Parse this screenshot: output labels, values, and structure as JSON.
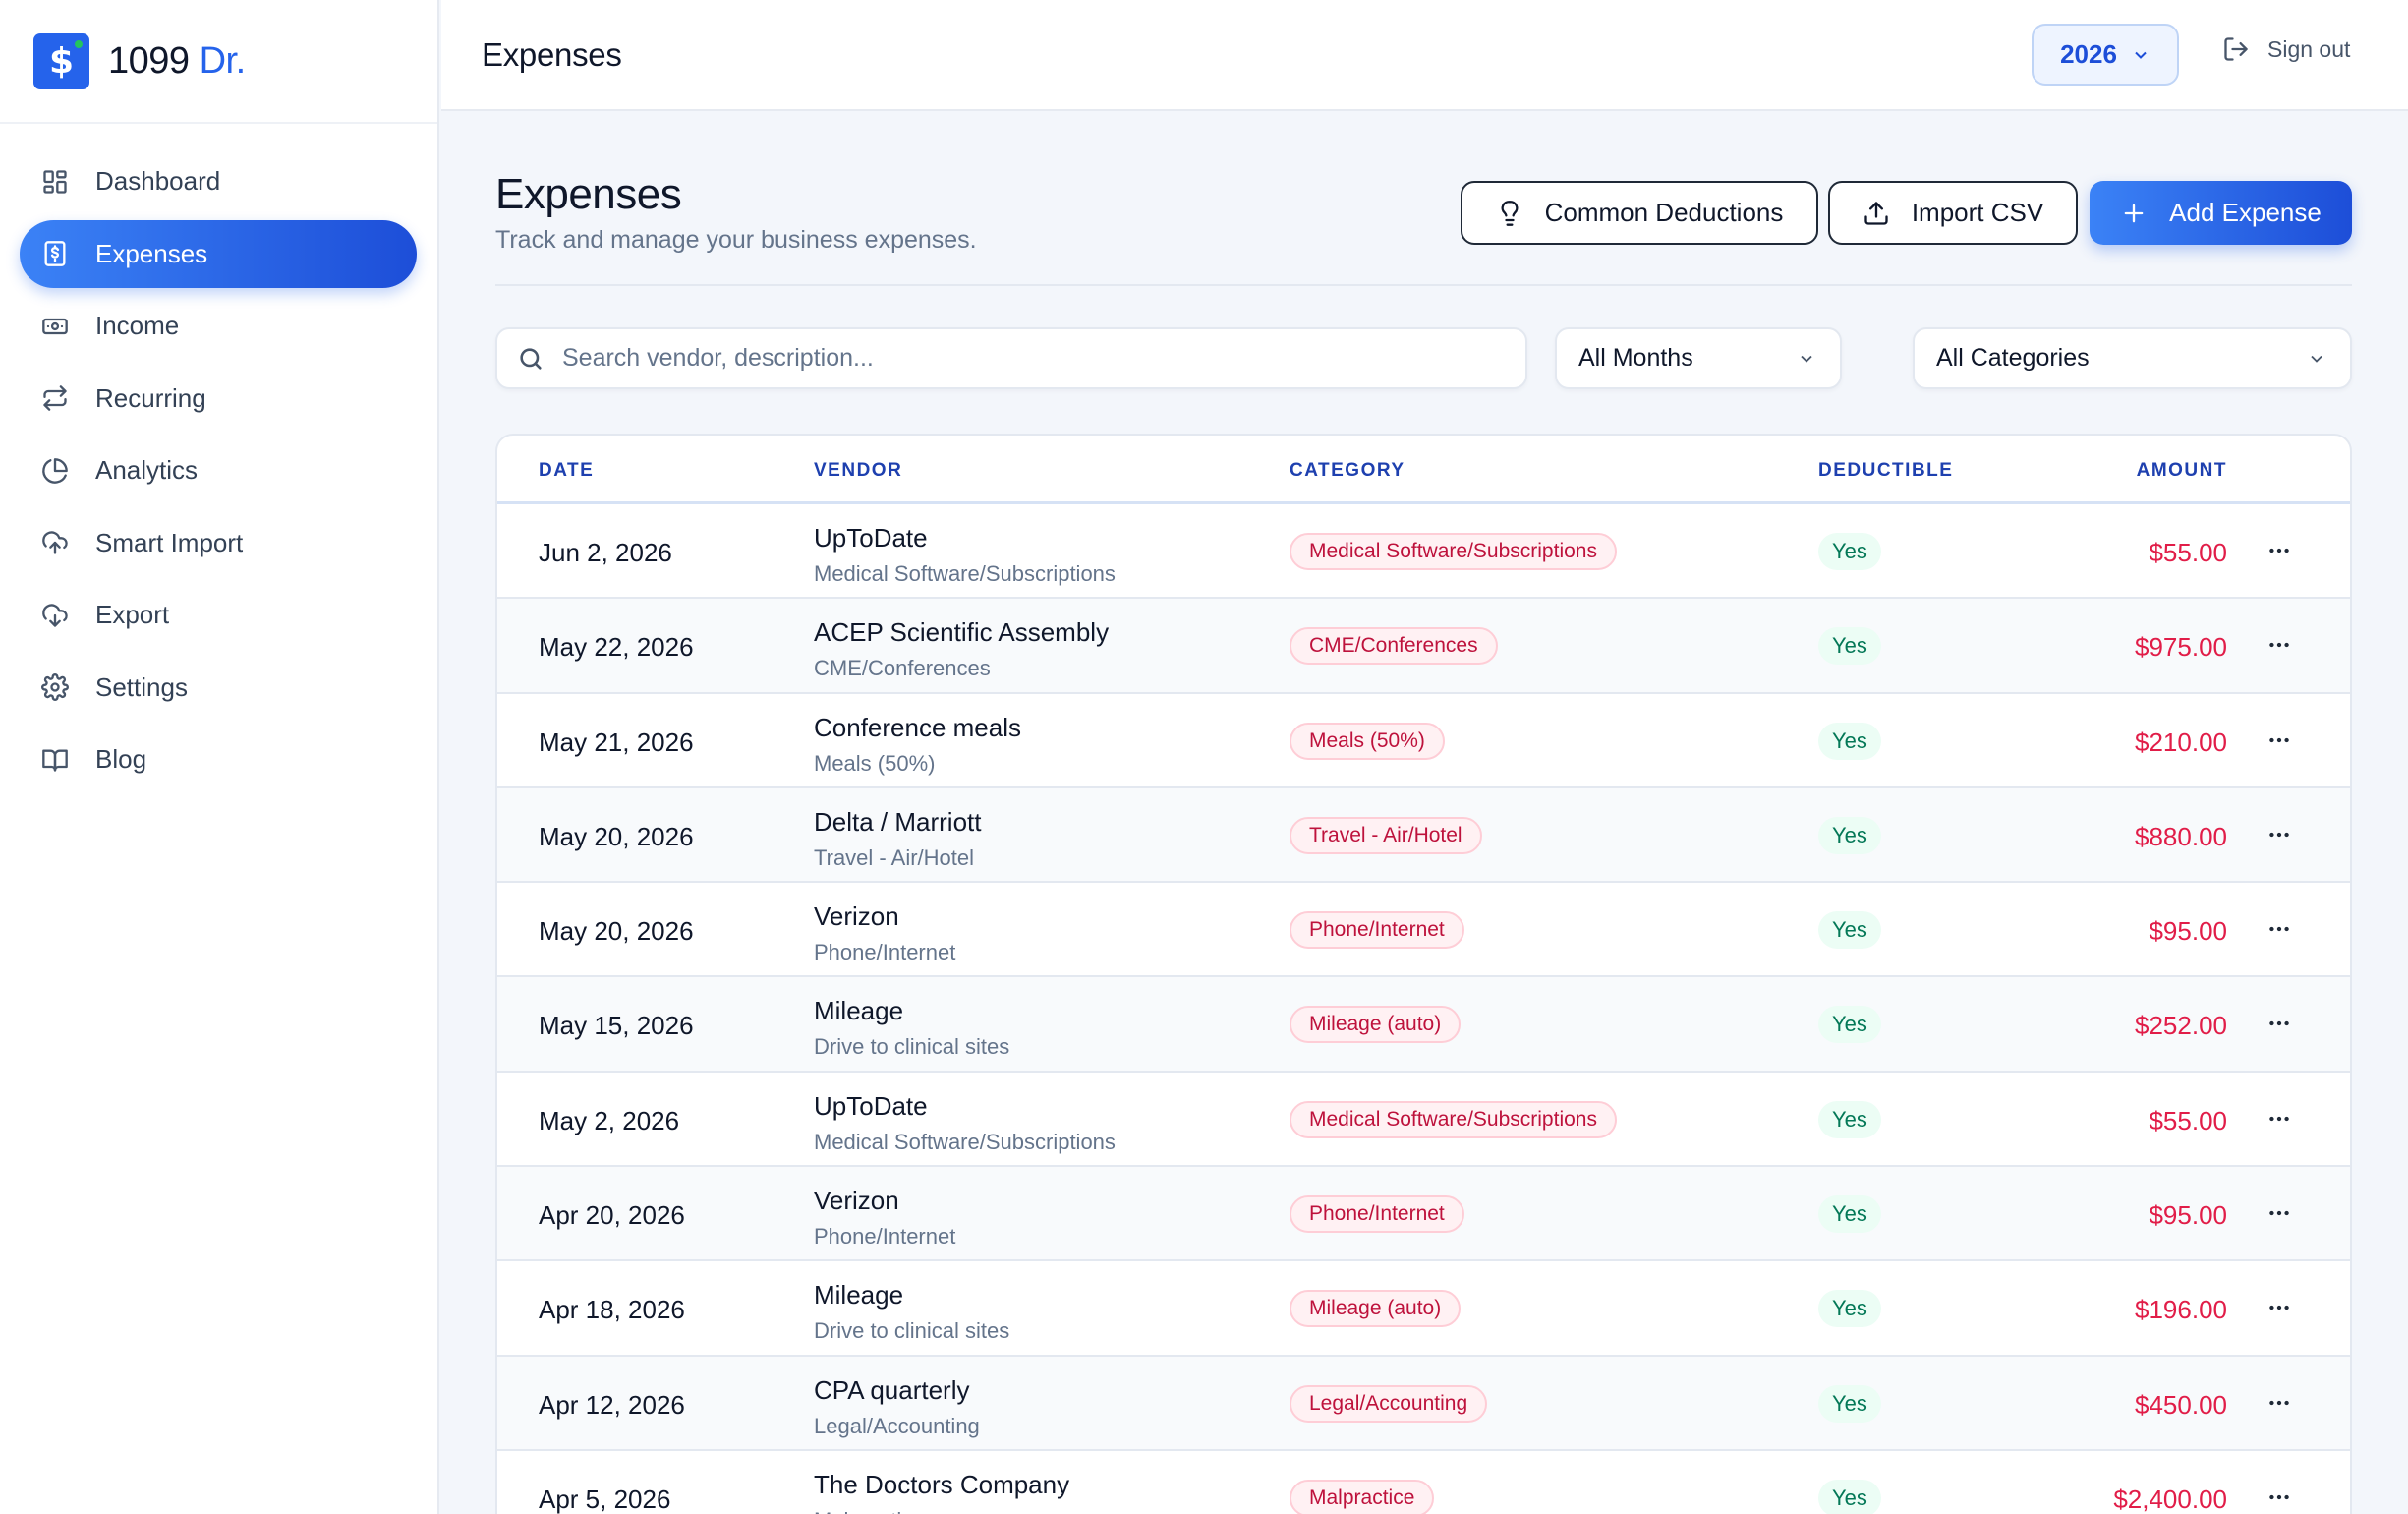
{
  "brand": {
    "name_prefix": "1099",
    "name_accent": "Dr.",
    "logo_symbol": "$"
  },
  "sidebar": {
    "items": [
      {
        "label": "Dashboard",
        "icon": "grid-icon",
        "active": false
      },
      {
        "label": "Expenses",
        "icon": "receipt-icon",
        "active": true
      },
      {
        "label": "Income",
        "icon": "banknote-icon",
        "active": false
      },
      {
        "label": "Recurring",
        "icon": "repeat-icon",
        "active": false
      },
      {
        "label": "Analytics",
        "icon": "pie-chart-icon",
        "active": false
      },
      {
        "label": "Smart Import",
        "icon": "cloud-upload-icon",
        "active": false
      },
      {
        "label": "Export",
        "icon": "cloud-download-icon",
        "active": false
      },
      {
        "label": "Settings",
        "icon": "gear-icon",
        "active": false
      },
      {
        "label": "Blog",
        "icon": "book-icon",
        "active": false
      }
    ]
  },
  "topbar": {
    "title": "Expenses",
    "year": "2026",
    "signout": "Sign out"
  },
  "page": {
    "title": "Expenses",
    "subtitle": "Track and manage your business expenses.",
    "buttons": {
      "deductions": "Common Deductions",
      "import": "Import CSV",
      "add": "Add Expense"
    }
  },
  "filters": {
    "search_placeholder": "Search vendor, description...",
    "search_value": "",
    "months": "All Months",
    "categories": "All Categories"
  },
  "table": {
    "columns": {
      "date": "DATE",
      "vendor": "VENDOR",
      "category": "CATEGORY",
      "deductible": "DEDUCTIBLE",
      "amount": "AMOUNT"
    },
    "rows": [
      {
        "date": "Jun 2, 2026",
        "vendor": "UpToDate",
        "desc": "Medical Software/Subscriptions",
        "category": "Medical Software/Subscriptions",
        "deductible": "Yes",
        "amount": "$55.00"
      },
      {
        "date": "May 22, 2026",
        "vendor": "ACEP Scientific Assembly",
        "desc": "CME/Conferences",
        "category": "CME/Conferences",
        "deductible": "Yes",
        "amount": "$975.00"
      },
      {
        "date": "May 21, 2026",
        "vendor": "Conference meals",
        "desc": "Meals (50%)",
        "category": "Meals (50%)",
        "deductible": "Yes",
        "amount": "$210.00"
      },
      {
        "date": "May 20, 2026",
        "vendor": "Delta / Marriott",
        "desc": "Travel - Air/Hotel",
        "category": "Travel - Air/Hotel",
        "deductible": "Yes",
        "amount": "$880.00"
      },
      {
        "date": "May 20, 2026",
        "vendor": "Verizon",
        "desc": "Phone/Internet",
        "category": "Phone/Internet",
        "deductible": "Yes",
        "amount": "$95.00"
      },
      {
        "date": "May 15, 2026",
        "vendor": "Mileage",
        "desc": "Drive to clinical sites",
        "category": "Mileage (auto)",
        "deductible": "Yes",
        "amount": "$252.00"
      },
      {
        "date": "May 2, 2026",
        "vendor": "UpToDate",
        "desc": "Medical Software/Subscriptions",
        "category": "Medical Software/Subscriptions",
        "deductible": "Yes",
        "amount": "$55.00"
      },
      {
        "date": "Apr 20, 2026",
        "vendor": "Verizon",
        "desc": "Phone/Internet",
        "category": "Phone/Internet",
        "deductible": "Yes",
        "amount": "$95.00"
      },
      {
        "date": "Apr 18, 2026",
        "vendor": "Mileage",
        "desc": "Drive to clinical sites",
        "category": "Mileage (auto)",
        "deductible": "Yes",
        "amount": "$196.00"
      },
      {
        "date": "Apr 12, 2026",
        "vendor": "CPA quarterly",
        "desc": "Legal/Accounting",
        "category": "Legal/Accounting",
        "deductible": "Yes",
        "amount": "$450.00"
      },
      {
        "date": "Apr 5, 2026",
        "vendor": "The Doctors Company",
        "desc": "Malpractice",
        "category": "Malpractice",
        "deductible": "Yes",
        "amount": "$2,400.00"
      }
    ]
  },
  "colors": {
    "accent": "#2563eb",
    "amount": "#e11d48",
    "category_badge": "#be123c",
    "deductible_badge": "#047857"
  }
}
